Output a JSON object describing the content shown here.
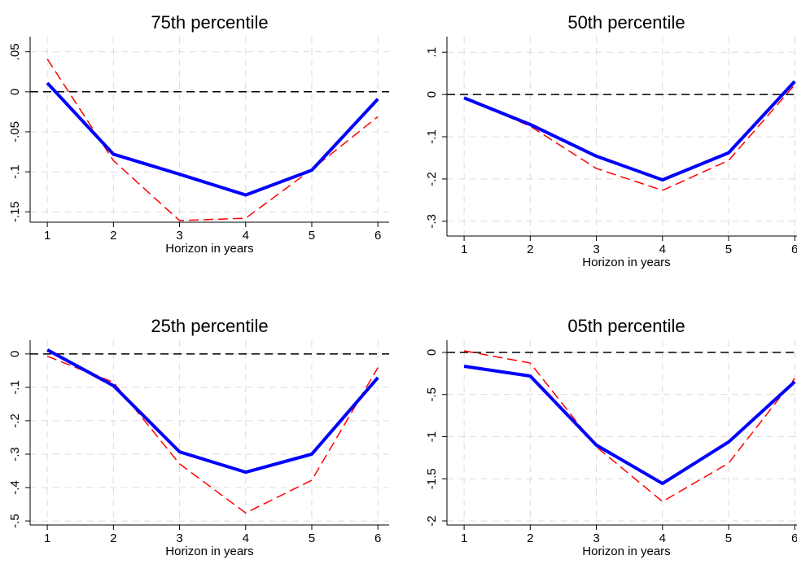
{
  "chart_data": [
    {
      "type": "line",
      "title": "75th percentile",
      "xlabel": "Horizon in years",
      "x": [
        1,
        2,
        3,
        4,
        5,
        6
      ],
      "xlim": [
        0.74,
        6.17
      ],
      "xticks": [
        1,
        2,
        3,
        4,
        5,
        6
      ],
      "ylim": [
        -0.163,
        0.069
      ],
      "yticks": [
        {
          "value": -0.15,
          "label": "-.15"
        },
        {
          "value": -0.1,
          "label": "-.1"
        },
        {
          "value": -0.05,
          "label": "-.05"
        },
        0,
        {
          "value": 0.05,
          "label": ".05"
        }
      ],
      "grid": true,
      "reference_line": 0,
      "series": [
        {
          "color": "#0000ff",
          "line_style": "solid",
          "values": [
            0.011,
            -0.078,
            -0.103,
            -0.129,
            -0.098,
            -0.009
          ]
        },
        {
          "color": "#ff0000",
          "line_style": "dashed",
          "values": [
            0.041,
            -0.086,
            -0.161,
            -0.158,
            -0.097,
            -0.031
          ]
        }
      ]
    },
    {
      "type": "line",
      "title": "50th percentile",
      "xlabel": "Horizon in years",
      "x": [
        1,
        2,
        3,
        4,
        5,
        6
      ],
      "xlim": [
        0.74,
        6.17
      ],
      "xticks": [
        1,
        2,
        3,
        4,
        5,
        6
      ],
      "ylim": [
        -0.335,
        0.137
      ],
      "yticks": [
        {
          "value": -0.3,
          "label": "-.3"
        },
        {
          "value": -0.2,
          "label": "-.2"
        },
        {
          "value": -0.1,
          "label": "-.1"
        },
        0,
        {
          "value": 0.1,
          "label": ".1"
        }
      ],
      "grid": true,
      "reference_line": 0,
      "series": [
        {
          "color": "#0000ff",
          "line_style": "solid",
          "values": [
            -0.008,
            -0.071,
            -0.146,
            -0.202,
            -0.138,
            0.031
          ]
        },
        {
          "color": "#ff0000",
          "line_style": "dashed",
          "values": [
            -0.008,
            -0.075,
            -0.175,
            -0.227,
            -0.156,
            0.023
          ]
        }
      ]
    },
    {
      "type": "line",
      "title": "25th percentile",
      "xlabel": "Horizon in years",
      "x": [
        1,
        2,
        3,
        4,
        5,
        6
      ],
      "xlim": [
        0.74,
        6.17
      ],
      "xticks": [
        1,
        2,
        3,
        4,
        5,
        6
      ],
      "ylim": [
        -0.512,
        0.041
      ],
      "yticks": [
        {
          "value": -0.5,
          "label": "-.5"
        },
        {
          "value": -0.4,
          "label": "-.4"
        },
        {
          "value": -0.3,
          "label": "-.3"
        },
        {
          "value": -0.2,
          "label": "-.2"
        },
        {
          "value": -0.1,
          "label": "-.1"
        },
        0
      ],
      "grid": true,
      "reference_line": 0,
      "series": [
        {
          "color": "#0000ff",
          "line_style": "solid",
          "values": [
            0.012,
            -0.095,
            -0.293,
            -0.354,
            -0.3,
            -0.071
          ]
        },
        {
          "color": "#ff0000",
          "line_style": "dashed",
          "values": [
            -0.007,
            -0.085,
            -0.329,
            -0.476,
            -0.378,
            -0.041
          ]
        }
      ]
    },
    {
      "type": "line",
      "title": "05th percentile",
      "xlabel": "Horizon in years",
      "x": [
        1,
        2,
        3,
        4,
        5,
        6
      ],
      "xlim": [
        0.74,
        6.17
      ],
      "xticks": [
        1,
        2,
        3,
        4,
        5,
        6
      ],
      "ylim": [
        -2.048,
        0.145
      ],
      "yticks": [
        -2,
        {
          "value": -1.5,
          "label": "-1.5"
        },
        -1,
        {
          "value": -0.5,
          "label": "-.5"
        },
        0
      ],
      "grid": true,
      "reference_line": 0,
      "series": [
        {
          "color": "#0000ff",
          "line_style": "solid",
          "values": [
            -0.164,
            -0.28,
            -1.1,
            -1.556,
            -1.063,
            -0.348
          ]
        },
        {
          "color": "#ff0000",
          "line_style": "dashed",
          "values": [
            0.019,
            -0.126,
            -1.12,
            -1.77,
            -1.314,
            -0.309
          ]
        }
      ]
    }
  ]
}
